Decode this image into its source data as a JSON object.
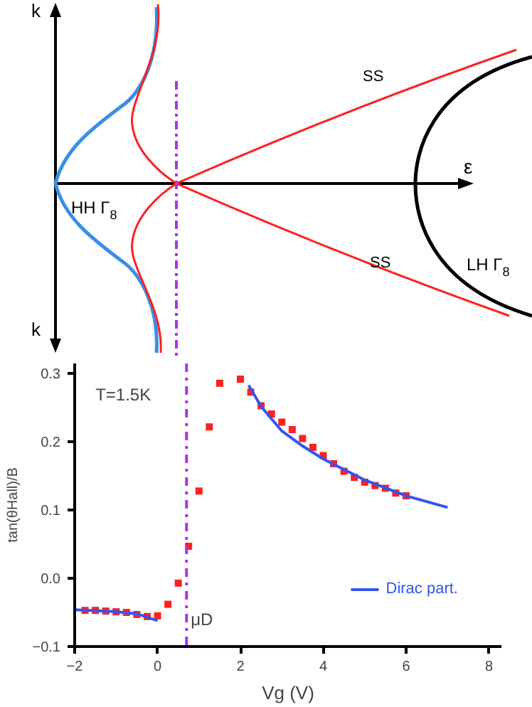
{
  "chart_data": [
    {
      "type": "other",
      "annotations": [
        "k",
        "k",
        "ε",
        "HH Γ$_{8}$",
        "SS",
        "SS",
        "LH Γ$_{8}$"
      ]
    },
    {
      "type": "line",
      "xlabel": "Vg (V)",
      "ylabel": "tan(θHall)/B",
      "annotations": [
        "T=1.5K"
      ],
      "xlim": [
        -2,
        8.3
      ],
      "ylim": [
        -0.1,
        0.315
      ],
      "xticks": [
        -2,
        0,
        2,
        4,
        6,
        8
      ],
      "yticks": [
        -0.1,
        {
          "value": 0,
          "label": "0.0"
        },
        0.1,
        0.2,
        0.3
      ],
      "grid": false,
      "legend": "bottom right",
      "ref_lines": [
        {
          "axis": "x",
          "value": 0.7,
          "label": "μD",
          "color": "#aa33ee",
          "line_style": "dashdot"
        }
      ],
      "series": [
        {
          "type": "scatter",
          "marker": "square",
          "color": "#ff2020",
          "x": [
            -1.75,
            -1.5,
            -1.25,
            -1.0,
            -0.75,
            -0.5,
            -0.25,
            0.0,
            0.25,
            0.5,
            0.75,
            1.0,
            1.25,
            1.5,
            2.0,
            2.25,
            2.5,
            2.75,
            3.0,
            3.25,
            3.5,
            3.75,
            4.0,
            4.25,
            4.5,
            4.75,
            5.0,
            5.25,
            5.5,
            5.75,
            6.0
          ],
          "values": [
            -0.047,
            -0.047,
            -0.048,
            -0.049,
            -0.05,
            -0.053,
            -0.056,
            -0.055,
            -0.038,
            -0.007,
            0.047,
            0.128,
            0.222,
            0.286,
            0.292,
            0.273,
            0.253,
            0.241,
            0.229,
            0.218,
            0.205,
            0.192,
            0.18,
            0.168,
            0.157,
            0.148,
            0.141,
            0.136,
            0.132,
            0.125,
            0.121
          ]
        },
        {
          "type": "line",
          "name": "Dirac part.",
          "color": "#3355ee",
          "x": [
            -2,
            -1,
            -0.5,
            0,
            1,
            2.2,
            2.5,
            3,
            3.5,
            4,
            5,
            6,
            7
          ],
          "values": [
            -0.046,
            -0.049,
            -0.052,
            -0.062,
            null,
            0.283,
            0.252,
            0.216,
            0.194,
            0.175,
            0.144,
            0.121,
            0.104
          ]
        }
      ]
    }
  ]
}
